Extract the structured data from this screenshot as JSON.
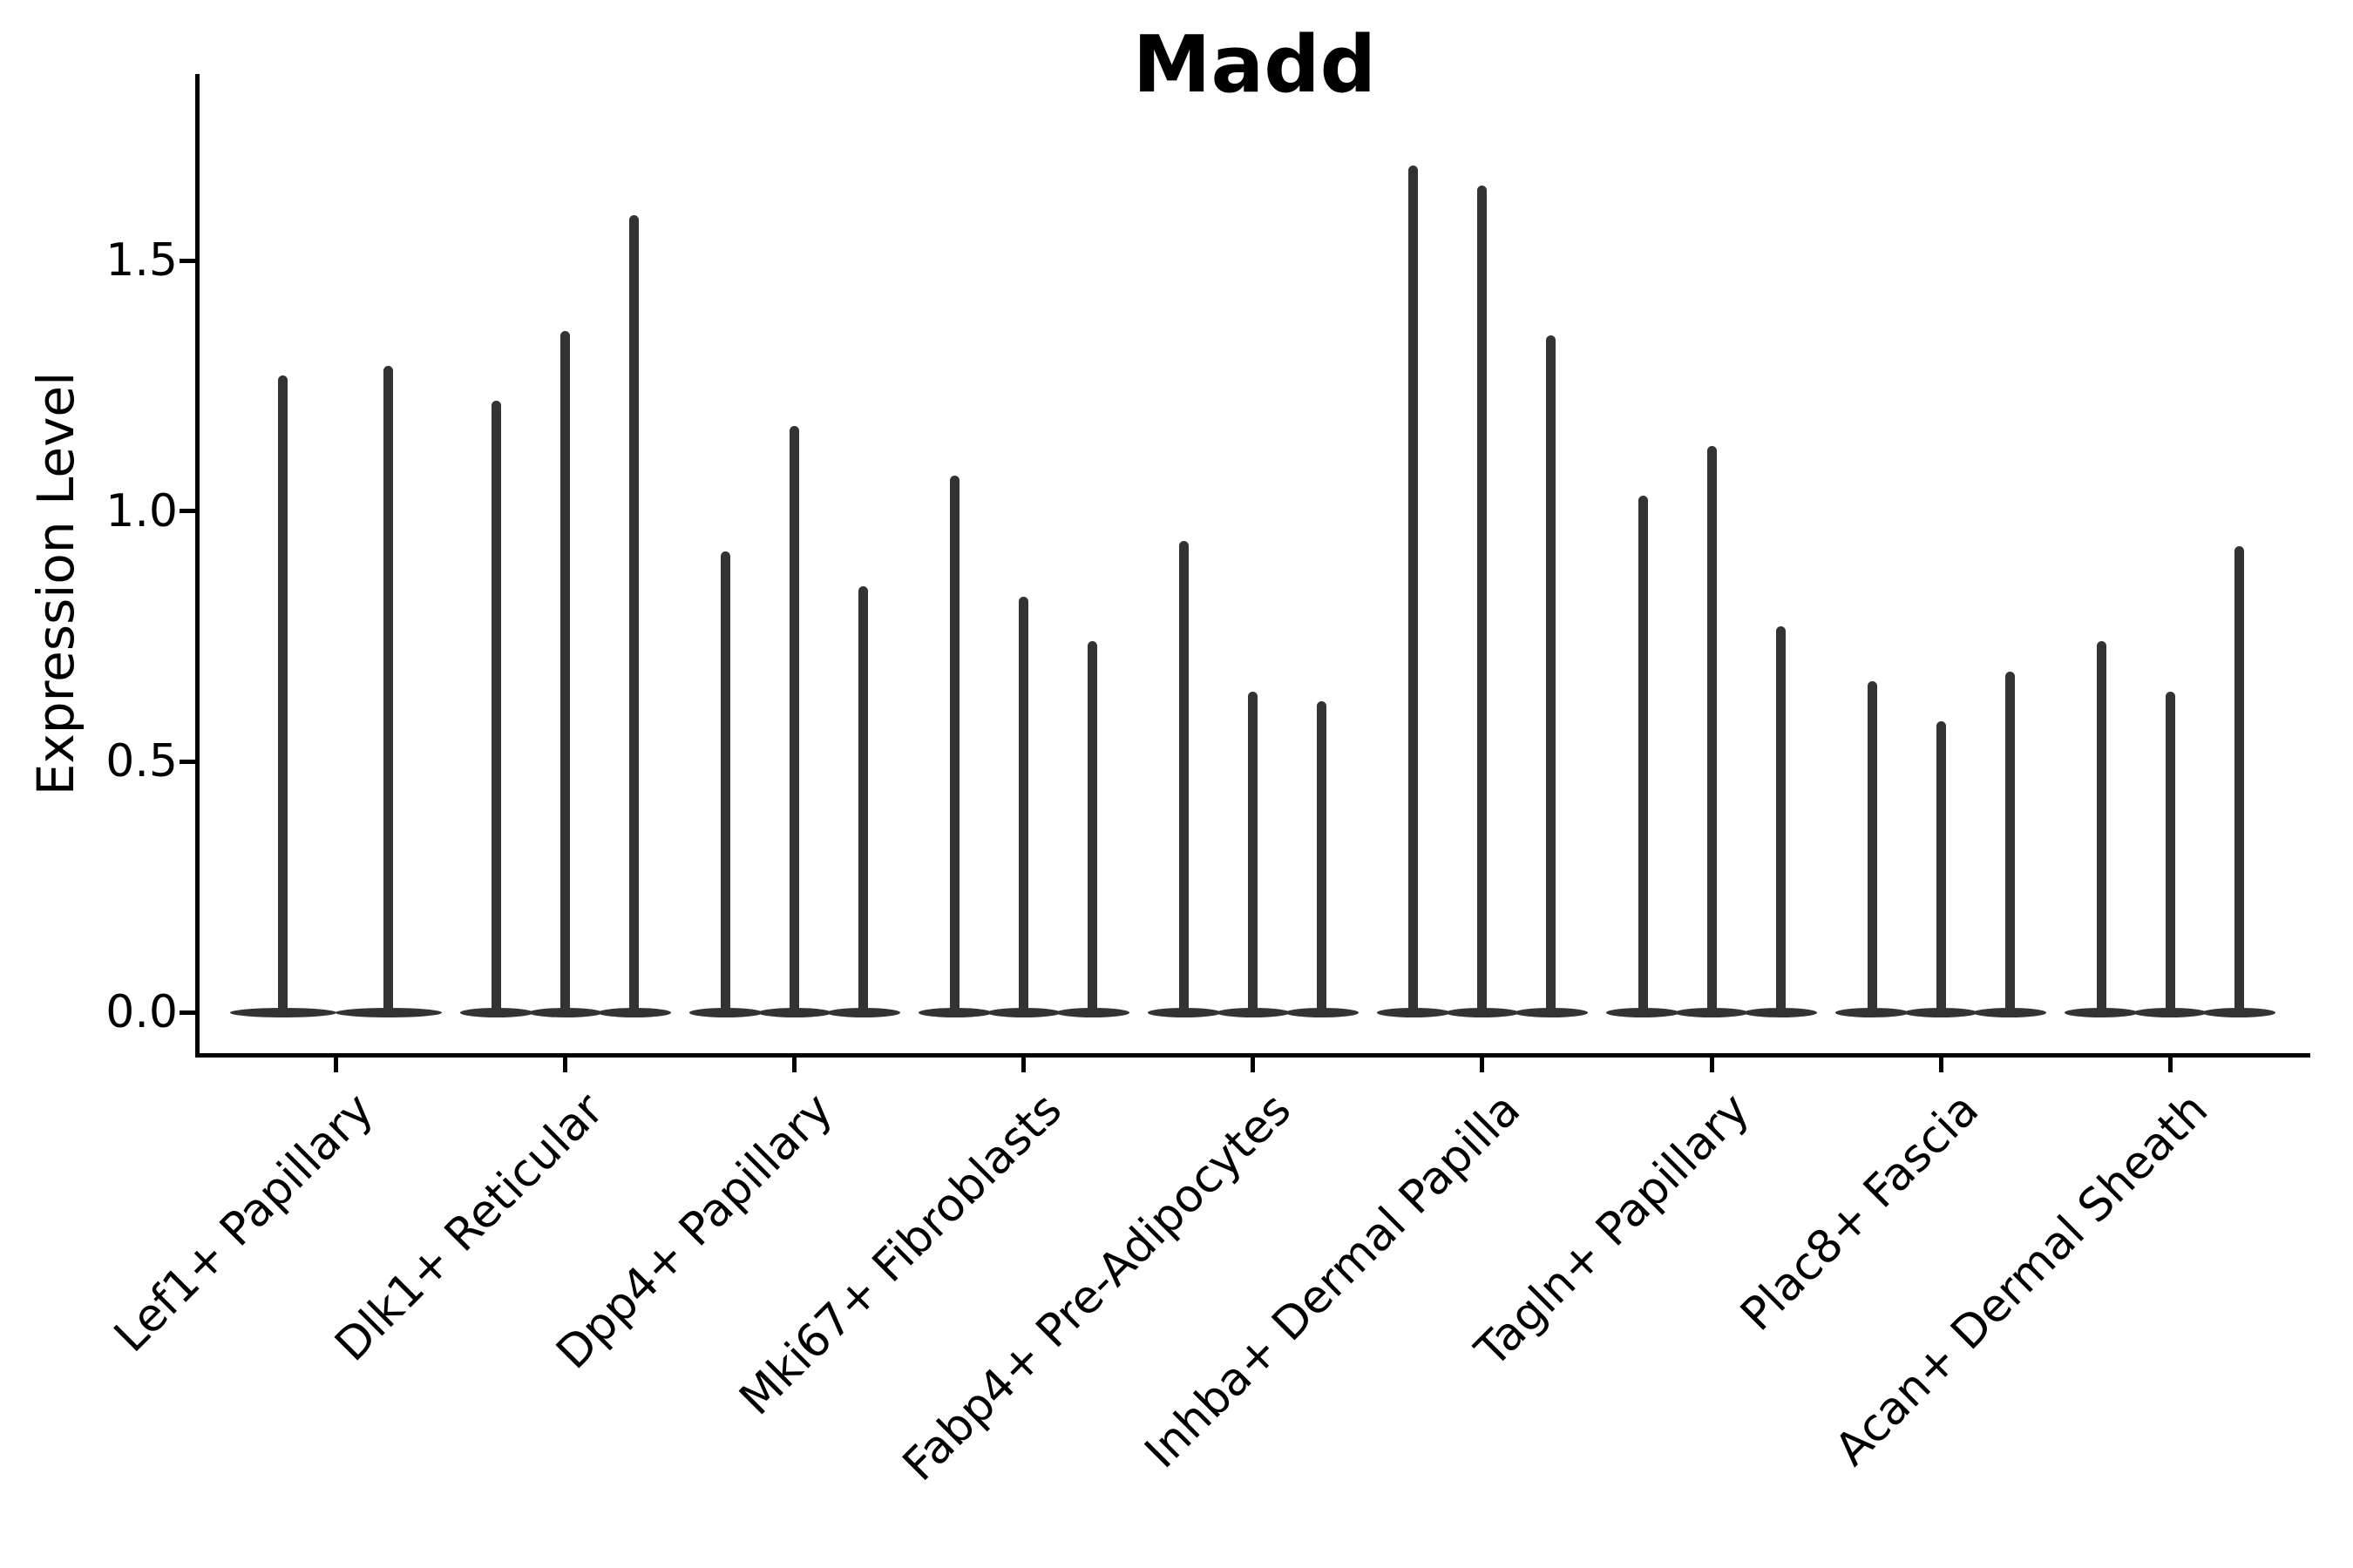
{
  "figure": {
    "background": "#ffffff"
  },
  "chart_data": {
    "type": "violin",
    "title": "Madd",
    "ylabel": "Expression Level",
    "xlabel": "",
    "grid": false,
    "legend_position": "none",
    "ylim": [
      -0.09,
      1.87
    ],
    "violin_color": "#333333",
    "axis_color": "#000000",
    "text_color": "#000000",
    "yticks": [
      {
        "value": 0.0,
        "label": "0.0"
      },
      {
        "value": 0.5,
        "label": "0.5"
      },
      {
        "value": 1.0,
        "label": "1.0"
      },
      {
        "value": 1.5,
        "label": "1.5"
      }
    ],
    "categories": [
      "Lef1+ Papillary",
      "Dlk1+ Reticular",
      "Dpp4+ Papillary",
      "Mki67+ Fibroblasts",
      "Fabp4+ Pre-Adipocytes",
      "Inhba+ Dermal Papilla",
      "Tagln+ Papillary",
      "Plac8+ Fascia",
      "Acan+ Dermal Sheath"
    ],
    "groups": [
      {
        "label": "Lef1+ Papillary",
        "violin_peaks": [
          1.27,
          1.29
        ]
      },
      {
        "label": "Dlk1+ Reticular",
        "violin_peaks": [
          1.22,
          1.36,
          1.59
        ]
      },
      {
        "label": "Dpp4+ Papillary",
        "violin_peaks": [
          0.92,
          1.17,
          0.85
        ]
      },
      {
        "label": "Mki67+ Fibroblasts",
        "violin_peaks": [
          1.07,
          0.83,
          0.74
        ]
      },
      {
        "label": "Fabp4+ Pre-Adipocytes",
        "violin_peaks": [
          0.94,
          0.64,
          0.62
        ]
      },
      {
        "label": "Inhba+ Dermal Papilla",
        "violin_peaks": [
          1.69,
          1.65,
          1.35
        ]
      },
      {
        "label": "Tagln+ Papillary",
        "violin_peaks": [
          1.03,
          1.13,
          0.77
        ]
      },
      {
        "label": "Plac8+ Fascia",
        "violin_peaks": [
          0.66,
          0.58,
          0.68
        ]
      },
      {
        "label": "Acan+ Dermal Sheath",
        "violin_peaks": [
          0.74,
          0.64,
          0.93
        ]
      }
    ]
  }
}
